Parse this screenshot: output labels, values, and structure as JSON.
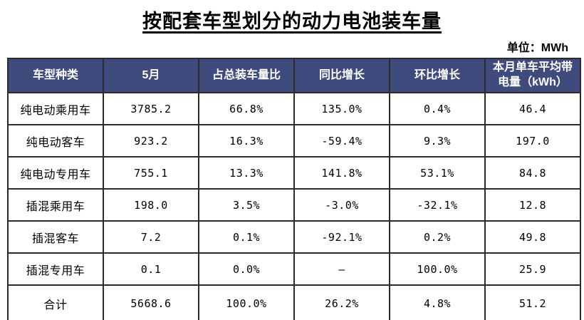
{
  "chart_data": {
    "type": "table",
    "title": "按配套车型划分的动力电池装车量",
    "unit_label": "单位：MWh",
    "columns": [
      "车型种类",
      "5月",
      "占总装车量比",
      "同比增长",
      "环比增长",
      "本月单车平均带\n电量（kWh）"
    ],
    "rows": [
      [
        "纯电动乘用车",
        "3785.2",
        "66.8%",
        "135.0%",
        "0.4%",
        "46.4"
      ],
      [
        "纯电动客车",
        "923.2",
        "16.3%",
        "-59.4%",
        "9.3%",
        "197.0"
      ],
      [
        "纯电动专用车",
        "755.1",
        "13.3%",
        "141.8%",
        "53.1%",
        "84.8"
      ],
      [
        "插混乘用车",
        "198.0",
        "3.5%",
        "-3.0%",
        "-32.1%",
        "12.8"
      ],
      [
        "插混客车",
        "7.2",
        "0.1%",
        "-92.1%",
        "0.2%",
        "49.8"
      ],
      [
        "插混专用车",
        "0.1",
        "0.0%",
        "—",
        "100.0%",
        "25.9"
      ],
      [
        "合计",
        "5668.6",
        "100.0%",
        "26.2%",
        "4.8%",
        "51.2"
      ]
    ]
  },
  "colors": {
    "header_bg": "#3f4b7c",
    "header_text": "#ffffff",
    "border": "#2b2b2b",
    "body_text": "#000000"
  }
}
